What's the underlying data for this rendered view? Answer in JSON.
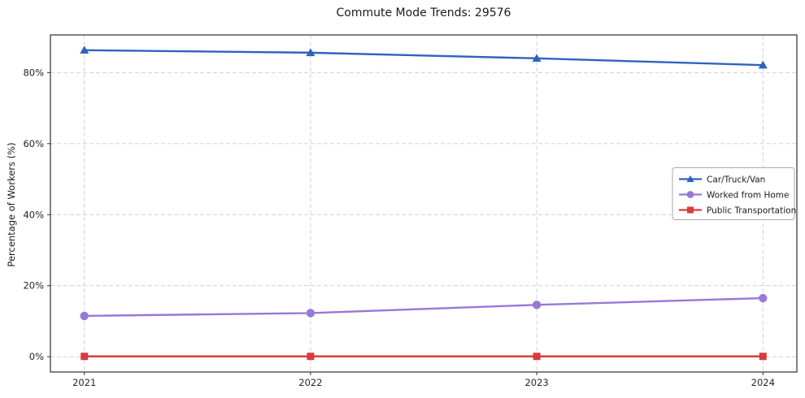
{
  "chart_data": {
    "type": "line",
    "title": "Commute Mode Trends: 29576",
    "xlabel": "",
    "ylabel": "Percentage of Workers (%)",
    "x": [
      2021,
      2022,
      2023,
      2024
    ],
    "x_tick_labels": [
      "2021",
      "2022",
      "2023",
      "2024"
    ],
    "y_ticks": [
      0,
      20,
      40,
      60,
      80
    ],
    "y_tick_labels": [
      "0%",
      "20%",
      "40%",
      "60%",
      "80%"
    ],
    "ylim": [
      -4.3,
      90.6
    ],
    "grid": true,
    "grid_style": "dashed",
    "legend_position": "center right",
    "series": [
      {
        "name": "Car/Truck/Van",
        "values": [
          86.3,
          85.6,
          84.0,
          82.1
        ],
        "color": "#2f63be",
        "marker": "triangle"
      },
      {
        "name": "Worked from Home",
        "values": [
          11.5,
          12.3,
          14.6,
          16.5
        ],
        "color": "#9878d8",
        "marker": "circle"
      },
      {
        "name": "Public Transportation",
        "values": [
          0.1,
          0.1,
          0.1,
          0.1
        ],
        "color": "#d63c3c",
        "marker": "square"
      }
    ],
    "colors": {
      "spine": "#2e2e2e",
      "grid": "#cccccc",
      "tick_text": "#262626",
      "legend_border": "#a9a9a9"
    }
  }
}
